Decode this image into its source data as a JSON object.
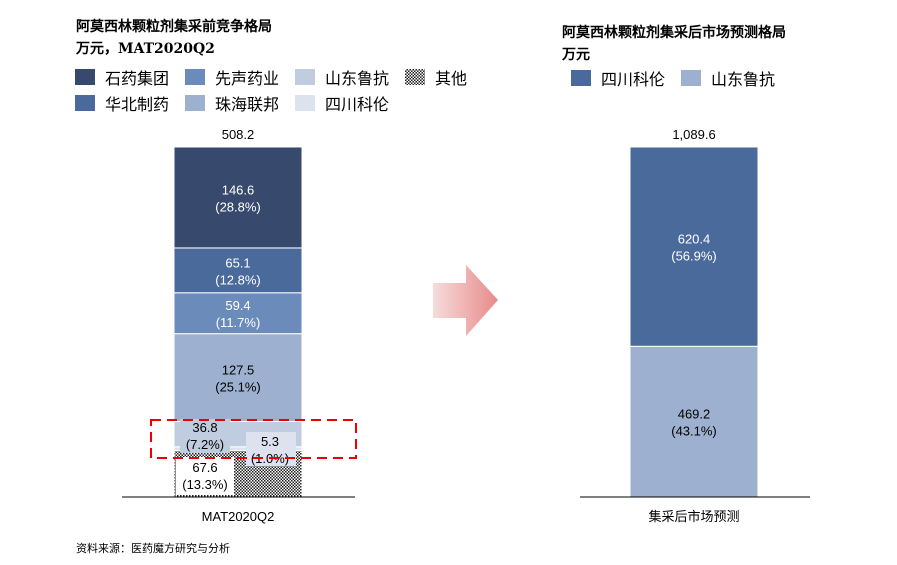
{
  "chart_data": [
    {
      "type": "stacked-bar",
      "title": "阿莫西林颗粒剂集采前竞争格局",
      "subtitle": "万元，MAT2020Q2",
      "categories": [
        "MAT2020Q2"
      ],
      "total": "508.2",
      "series": [
        {
          "name": "石药集团",
          "value": 146.6,
          "label": "146.6",
          "pct": "(28.8%)",
          "color": "#374a6d"
        },
        {
          "name": "华北制药",
          "value": 65.1,
          "label": "65.1",
          "pct": "(12.8%)",
          "color": "#4a6a9b"
        },
        {
          "name": "先声药业",
          "value": 59.4,
          "label": "59.4",
          "pct": "(11.7%)",
          "color": "#6b8cba"
        },
        {
          "name": "珠海联邦",
          "value": 127.5,
          "label": "127.5",
          "pct": "(25.1%)",
          "color": "#9eb0cf"
        },
        {
          "name": "山东鲁抗",
          "value": 36.8,
          "label": "36.8",
          "pct": "(7.2%)",
          "color": "#c0cce0"
        },
        {
          "name": "四川科伦",
          "value": 5.3,
          "label": "5.3",
          "pct": "(1.0%)",
          "color": "#dde3ee"
        },
        {
          "name": "其他",
          "value": 67.6,
          "label": "67.6",
          "pct": "(13.3%)",
          "color": "pattern"
        }
      ],
      "legend_order": [
        "石药集团",
        "先声药业",
        "山东鲁抗",
        "其他",
        "华北制药",
        "珠海联邦",
        "四川科伦"
      ],
      "highlight": "red dashed box around 山东鲁抗 and 四川科伦"
    },
    {
      "type": "stacked-bar",
      "title": "阿莫西林颗粒剂集采后市场预测格局",
      "subtitle": "万元",
      "categories": [
        "集采后市场预测"
      ],
      "total": "1,089.6",
      "series": [
        {
          "name": "四川科伦",
          "value": 620.4,
          "label": "620.4",
          "pct": "(56.9%)",
          "color": "#4a6a9b"
        },
        {
          "name": "山东鲁抗",
          "value": 469.2,
          "label": "469.2",
          "pct": "(43.1%)",
          "color": "#9eb0cf"
        }
      ]
    }
  ],
  "source": "资料来源：医药魔方研究与分析",
  "arrow_color": "#e88a8a"
}
